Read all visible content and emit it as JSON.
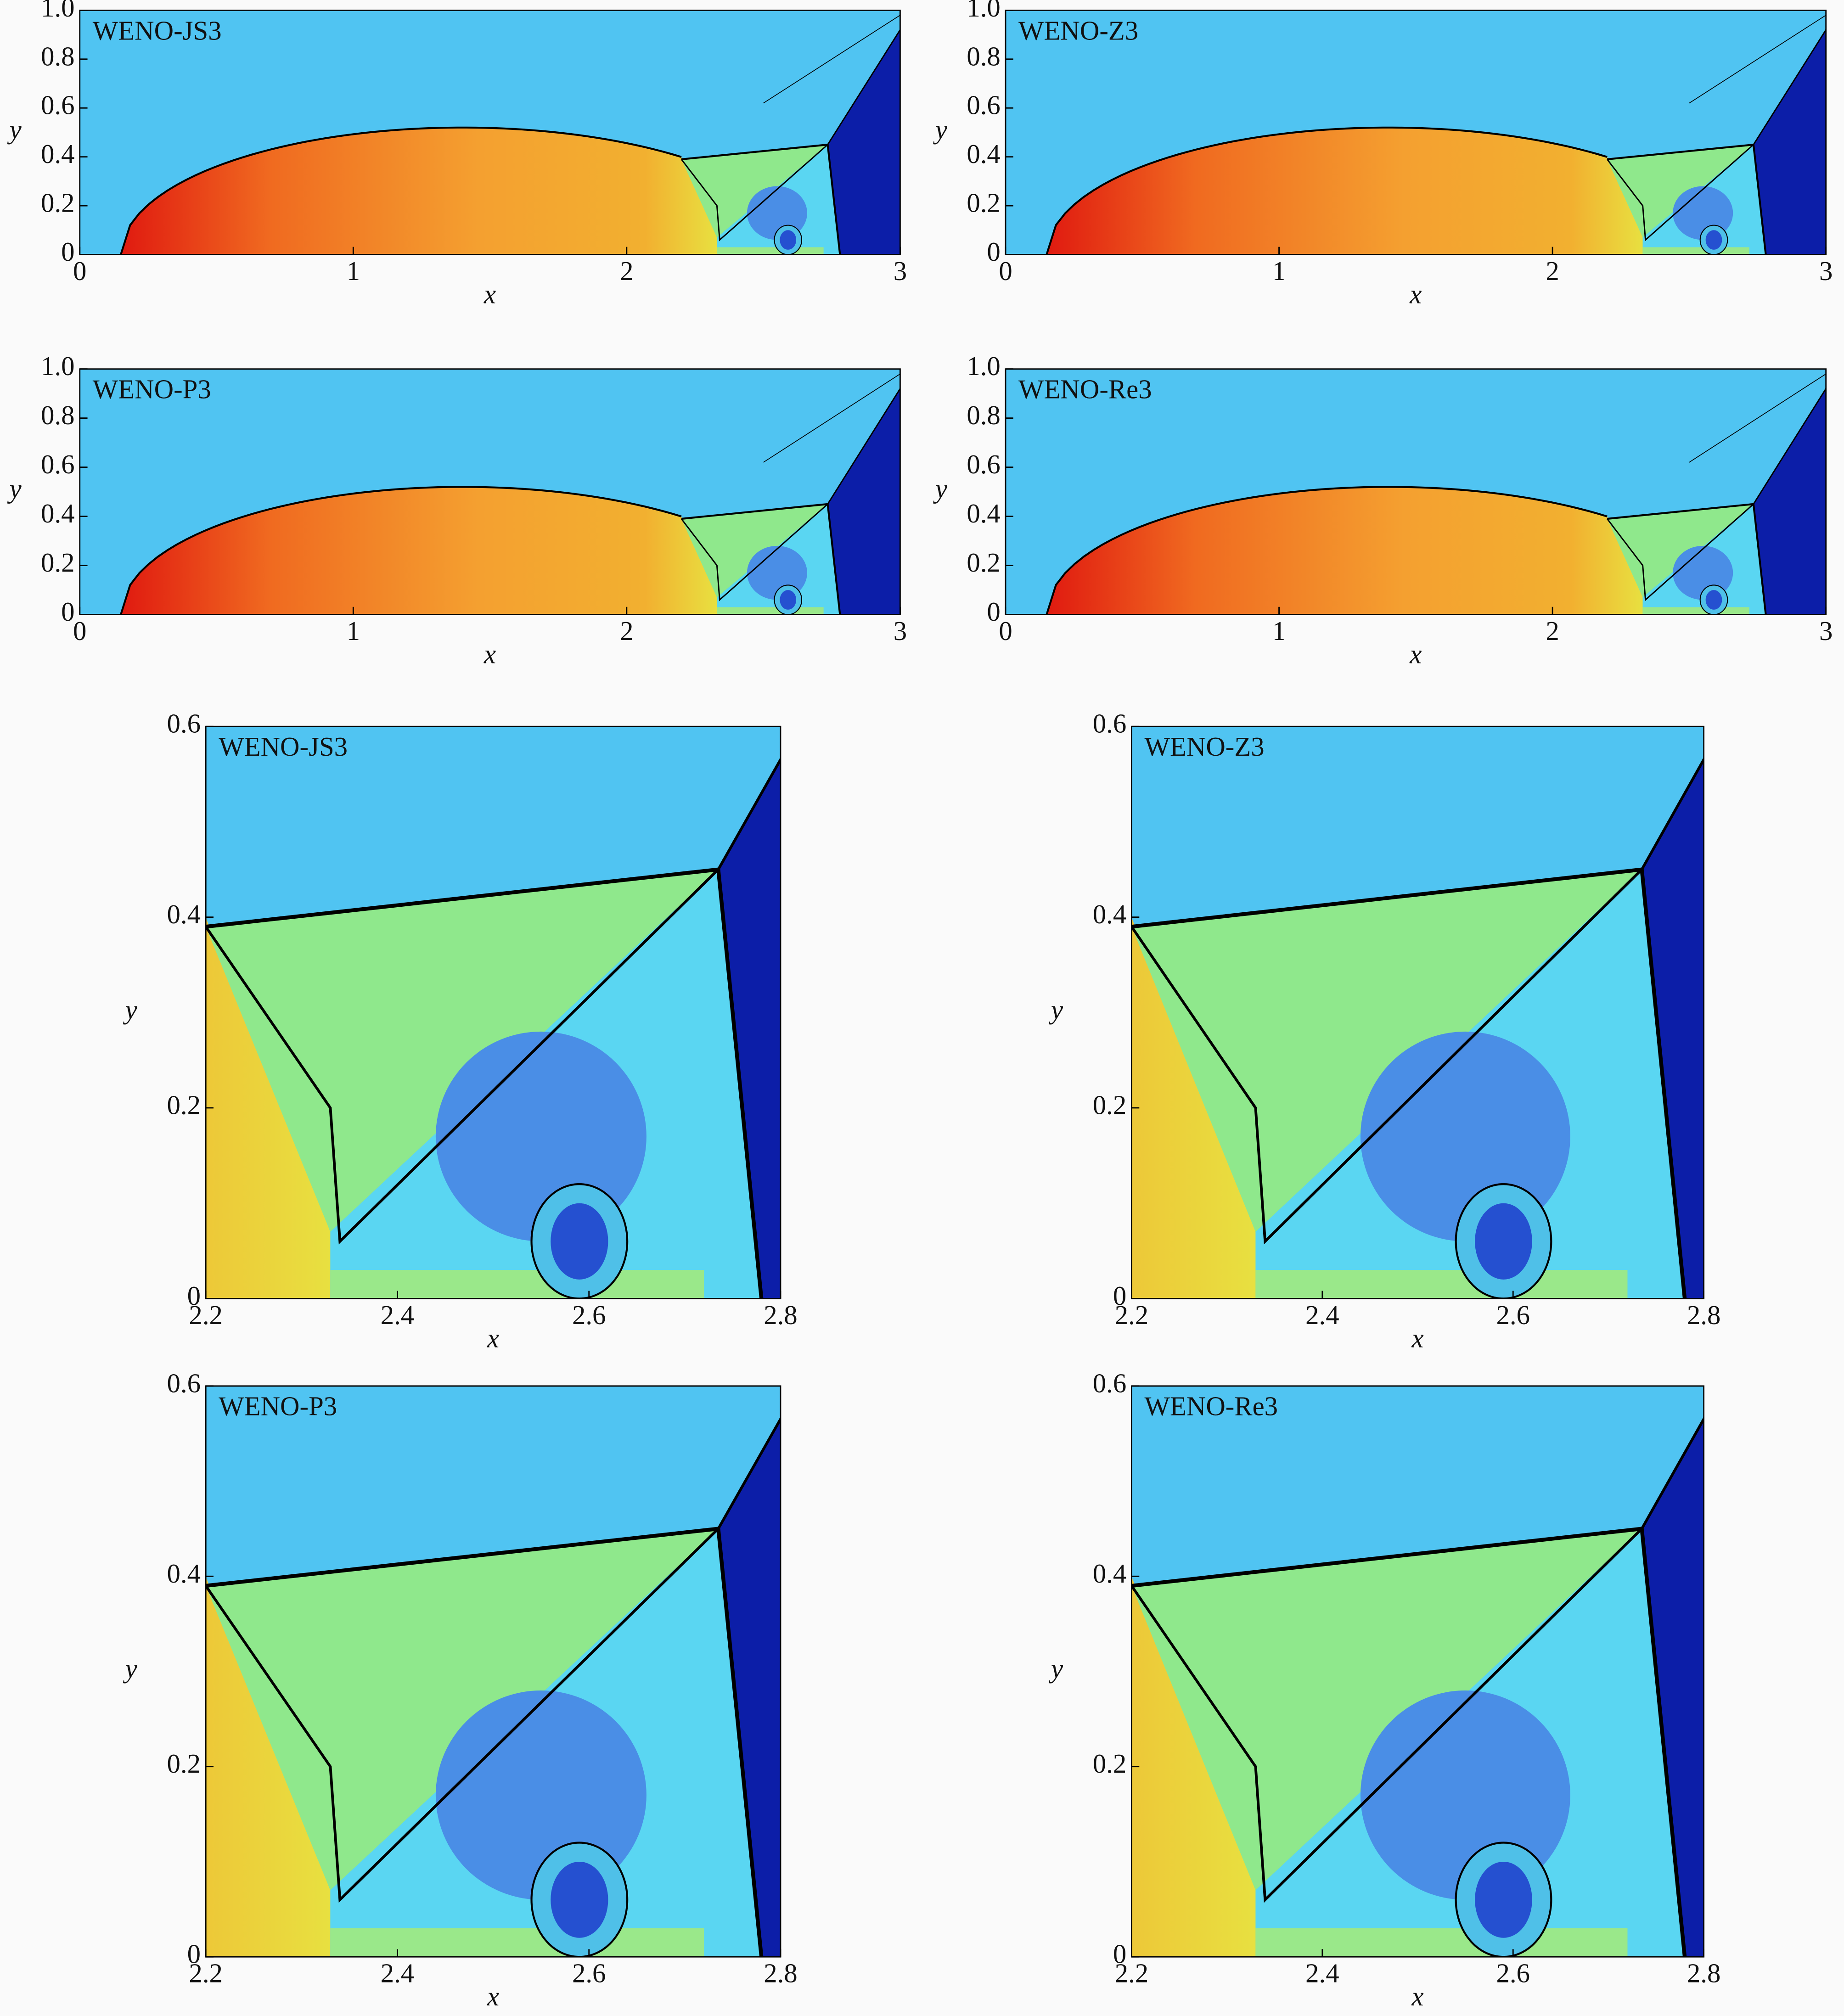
{
  "chart_data": [
    {
      "type": "contour",
      "title": "WENO-JS3",
      "xlabel": "x",
      "ylabel": "y",
      "xlim": [
        0,
        3
      ],
      "ylim": [
        0,
        1
      ],
      "xticks": [
        0,
        1,
        2,
        3
      ],
      "yticks": [
        0,
        0.2,
        0.4,
        0.6,
        0.8,
        {
          "value": 1,
          "label": "1.0"
        }
      ]
    },
    {
      "type": "contour",
      "title": "WENO-Z3",
      "xlabel": "x",
      "ylabel": "y",
      "xlim": [
        0,
        3
      ],
      "ylim": [
        0,
        1
      ],
      "xticks": [
        0,
        1,
        2,
        3
      ],
      "yticks": [
        0,
        0.2,
        0.4,
        0.6,
        0.8,
        {
          "value": 1,
          "label": "1.0"
        }
      ]
    },
    {
      "type": "contour",
      "title": "WENO-P3",
      "xlabel": "x",
      "ylabel": "y",
      "xlim": [
        0,
        3
      ],
      "ylim": [
        0,
        1
      ],
      "xticks": [
        0,
        1,
        2,
        3
      ],
      "yticks": [
        0,
        0.2,
        0.4,
        0.6,
        0.8,
        {
          "value": 1,
          "label": "1.0"
        }
      ]
    },
    {
      "type": "contour",
      "title": "WENO-Re3",
      "xlabel": "x",
      "ylabel": "y",
      "xlim": [
        0,
        3
      ],
      "ylim": [
        0,
        1
      ],
      "xticks": [
        0,
        1,
        2,
        3
      ],
      "yticks": [
        0,
        0.2,
        0.4,
        0.6,
        0.8,
        {
          "value": 1,
          "label": "1.0"
        }
      ]
    },
    {
      "type": "contour",
      "title": "WENO-JS3",
      "xlabel": "x",
      "ylabel": "y",
      "xlim": [
        2.2,
        2.8
      ],
      "ylim": [
        0,
        0.6
      ],
      "xticks": [
        2.2,
        2.4,
        2.6,
        2.8
      ],
      "yticks": [
        0,
        0.2,
        0.4,
        0.6
      ]
    },
    {
      "type": "contour",
      "title": "WENO-Z3",
      "xlabel": "x",
      "ylabel": "y",
      "xlim": [
        2.2,
        2.8
      ],
      "ylim": [
        0,
        0.6
      ],
      "xticks": [
        2.2,
        2.4,
        2.6,
        2.8
      ],
      "yticks": [
        0,
        0.2,
        0.4,
        0.6
      ]
    },
    {
      "type": "contour",
      "title": "WENO-P3",
      "xlabel": "x",
      "ylabel": "y",
      "xlim": [
        2.2,
        2.8
      ],
      "ylim": [
        0,
        0.6
      ],
      "xticks": [
        2.2,
        2.4,
        2.6,
        2.8
      ],
      "yticks": [
        0,
        0.2,
        0.4,
        0.6
      ]
    },
    {
      "type": "contour",
      "title": "WENO-Re3",
      "xlabel": "x",
      "ylabel": "y",
      "xlim": [
        2.2,
        2.8
      ],
      "ylim": [
        0,
        0.6
      ],
      "xticks": [
        2.2,
        2.4,
        2.6,
        2.8
      ],
      "yticks": [
        0,
        0.2,
        0.4,
        0.6
      ]
    }
  ]
}
